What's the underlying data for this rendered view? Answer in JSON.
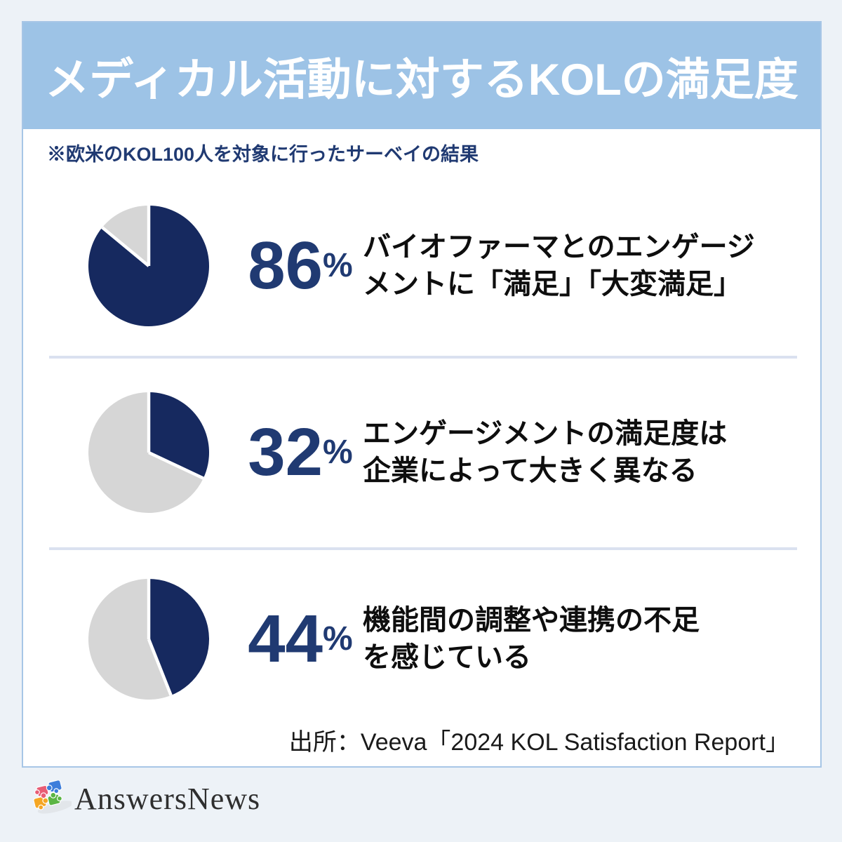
{
  "header": {
    "title": "メディカル活動に対するKOLの満足度",
    "note": "※欧米のKOL100人を対象に行ったサーベイの結果"
  },
  "stats": [
    {
      "value": "86",
      "unit": "%",
      "desc_line1": "バイオファーマとのエンゲージ",
      "desc_line2": "メントに「満足」「大変満足」"
    },
    {
      "value": "32",
      "unit": "%",
      "desc_line1": "エンゲージメントの満足度は",
      "desc_line2": "企業によって大きく異なる"
    },
    {
      "value": "44",
      "unit": "%",
      "desc_line1": "機能間の調整や連携の不足",
      "desc_line2": "を感じている"
    }
  ],
  "chart_data": [
    {
      "type": "pie",
      "values": [
        86,
        14
      ],
      "slice_colors": [
        "#16295F",
        "#D6D6D6"
      ],
      "start_angle_deg": 0,
      "direction": "clockwise",
      "annotation": "86%"
    },
    {
      "type": "pie",
      "values": [
        32,
        68
      ],
      "slice_colors": [
        "#16295F",
        "#D6D6D6"
      ],
      "start_angle_deg": 0,
      "direction": "clockwise",
      "annotation": "32%"
    },
    {
      "type": "pie",
      "values": [
        44,
        56
      ],
      "slice_colors": [
        "#16295F",
        "#D6D6D6"
      ],
      "start_angle_deg": 0,
      "direction": "clockwise",
      "annotation": "44%"
    }
  ],
  "source": {
    "text": "出所：Veeva「2024 KOL Satisfaction Report」"
  },
  "footer": {
    "logo_text": "AnswersNews"
  },
  "colors": {
    "navy": "#16295F",
    "navy_text": "#203A72",
    "gray_slice": "#D6D6D6",
    "banner_blue": "#9DC3E6",
    "page_bg": "#EDF2F7",
    "card_border": "#A7C6E6",
    "divider": "#DAE1F0",
    "logo_puzzle": [
      "#E85D75",
      "#3D7EDB",
      "#F5A623",
      "#5BB544"
    ]
  }
}
